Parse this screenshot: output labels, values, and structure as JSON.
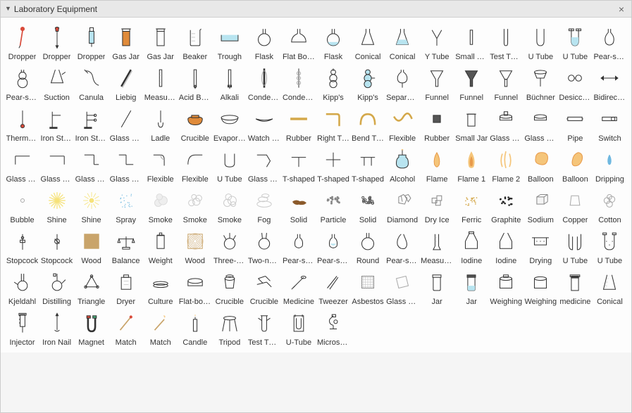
{
  "panel": {
    "title": "Laboratory Equipment"
  },
  "colors": {
    "stroke": "#333333",
    "glass_fill": "#b8e4f0",
    "liquid_red": "#d94a3a",
    "liquid_orange": "#e08b3a",
    "liquid_brown": "#8b5a2b",
    "flame": "#f5c57a",
    "flame_inner": "#e89a4a",
    "gold": "#d4a84a",
    "shine": "#f6e27a",
    "smoke": "#cccccc",
    "wood": "#c9a46a",
    "blue_drop": "#6fb8e0"
  },
  "items": [
    {
      "label": "Dropper",
      "icon": "dropper-red"
    },
    {
      "label": "Dropper",
      "icon": "dropper-bulb"
    },
    {
      "label": "Dropper",
      "icon": "dropper-blue"
    },
    {
      "label": "Gas Jar",
      "icon": "gasjar-fill"
    },
    {
      "label": "Gas Jar",
      "icon": "gasjar"
    },
    {
      "label": "Beaker",
      "icon": "beaker"
    },
    {
      "label": "Trough",
      "icon": "trough"
    },
    {
      "label": "Flask",
      "icon": "flask-round"
    },
    {
      "label": "Flat Bottom",
      "icon": "flask-flat"
    },
    {
      "label": "Flask",
      "icon": "flask-fill"
    },
    {
      "label": "Conical",
      "icon": "conical"
    },
    {
      "label": "Conical",
      "icon": "conical-fill"
    },
    {
      "label": "Y Tube",
      "icon": "ytube"
    },
    {
      "label": "Small Tube",
      "icon": "smalltube"
    },
    {
      "label": "Test Tube",
      "icon": "testtube"
    },
    {
      "label": "U Tube",
      "icon": "utube"
    },
    {
      "label": "U Tube",
      "icon": "utube-fill"
    },
    {
      "label": "Pear-shaped",
      "icon": "pear"
    },
    {
      "label": "Pear-shaped",
      "icon": "pear2"
    },
    {
      "label": "Suction",
      "icon": "suction"
    },
    {
      "label": "Canula",
      "icon": "canula"
    },
    {
      "label": "Liebig",
      "icon": "liebig"
    },
    {
      "label": "Measuring",
      "icon": "measuring"
    },
    {
      "label": "Acid Burette",
      "icon": "acid"
    },
    {
      "label": "Alkali",
      "icon": "alkali"
    },
    {
      "label": "Condenser",
      "icon": "condenser"
    },
    {
      "label": "Condenser",
      "icon": "condenser2"
    },
    {
      "label": "Kipp's",
      "icon": "kipps"
    },
    {
      "label": "Kipp's",
      "icon": "kipps2"
    },
    {
      "label": "Separating",
      "icon": "sep"
    },
    {
      "label": "Funnel",
      "icon": "funnel"
    },
    {
      "label": "Funnel",
      "icon": "funnel-fill"
    },
    {
      "label": "Funnel",
      "icon": "funnel2"
    },
    {
      "label": "Büchner",
      "icon": "buchner"
    },
    {
      "label": "Desiccator",
      "icon": "desic"
    },
    {
      "label": "Bidirectional",
      "icon": "bidir"
    },
    {
      "label": "Thermometer",
      "icon": "thermo"
    },
    {
      "label": "Iron Stand",
      "icon": "ironstand"
    },
    {
      "label": "Iron Stand",
      "icon": "ironstand2"
    },
    {
      "label": "Glass Rod",
      "icon": "glassrod"
    },
    {
      "label": "Ladle",
      "icon": "ladle"
    },
    {
      "label": "Crucible",
      "icon": "crucible"
    },
    {
      "label": "Evaporating",
      "icon": "evap"
    },
    {
      "label": "Watch Glass",
      "icon": "watch"
    },
    {
      "label": "Rubber",
      "icon": "rubber"
    },
    {
      "label": "Right Tube",
      "icon": "right"
    },
    {
      "label": "Bend Tube",
      "icon": "bend"
    },
    {
      "label": "Flexible",
      "icon": "flex"
    },
    {
      "label": "Rubber",
      "icon": "rubber2"
    },
    {
      "label": "Small Jar",
      "icon": "smalljar"
    },
    {
      "label": "Glass Cap",
      "icon": "glasscap"
    },
    {
      "label": "Glass Cap",
      "icon": "glasscap2"
    },
    {
      "label": "Pipe",
      "icon": "pipe"
    },
    {
      "label": "Switch",
      "icon": "switch"
    },
    {
      "label": "Glass Tube",
      "icon": "gtube1"
    },
    {
      "label": "Glass Tube",
      "icon": "gtube2"
    },
    {
      "label": "Glass Tube",
      "icon": "gtube3"
    },
    {
      "label": "Glass Tube",
      "icon": "gtube4"
    },
    {
      "label": "Flexible",
      "icon": "flex2"
    },
    {
      "label": "Flexible",
      "icon": "flex3"
    },
    {
      "label": "U Tube",
      "icon": "utube2"
    },
    {
      "label": "Glass Tube",
      "icon": "gtube5"
    },
    {
      "label": "T-shaped",
      "icon": "tshape"
    },
    {
      "label": "T-shaped",
      "icon": "tshape2"
    },
    {
      "label": "T-shaped",
      "icon": "tshape3"
    },
    {
      "label": "Alcohol",
      "icon": "alcohol"
    },
    {
      "label": "Flame",
      "icon": "flame"
    },
    {
      "label": "Flame 1",
      "icon": "flame1"
    },
    {
      "label": "Flame 2",
      "icon": "flame2"
    },
    {
      "label": "Balloon",
      "icon": "balloon"
    },
    {
      "label": "Balloon",
      "icon": "balloon2"
    },
    {
      "label": "Dripping",
      "icon": "drip"
    },
    {
      "label": "Bubble",
      "icon": "bubble"
    },
    {
      "label": "Shine",
      "icon": "shine"
    },
    {
      "label": "Shine",
      "icon": "shine2"
    },
    {
      "label": "Spray",
      "icon": "spray"
    },
    {
      "label": "Smoke",
      "icon": "smoke"
    },
    {
      "label": "Smoke",
      "icon": "smoke2"
    },
    {
      "label": "Smoke",
      "icon": "smoke3"
    },
    {
      "label": "Fog",
      "icon": "fog"
    },
    {
      "label": "Solid",
      "icon": "solid"
    },
    {
      "label": "Particle",
      "icon": "particle"
    },
    {
      "label": "Solid",
      "icon": "solid2"
    },
    {
      "label": "Diamond",
      "icon": "diamond"
    },
    {
      "label": "Dry Ice",
      "icon": "dryice"
    },
    {
      "label": "Ferric",
      "icon": "ferric"
    },
    {
      "label": "Graphite",
      "icon": "graphite"
    },
    {
      "label": "Sodium",
      "icon": "sodium"
    },
    {
      "label": "Copper",
      "icon": "copper"
    },
    {
      "label": "Cotton",
      "icon": "cotton"
    },
    {
      "label": "Stopcock",
      "icon": "stopcock"
    },
    {
      "label": "Stopcock",
      "icon": "stopcock2"
    },
    {
      "label": "Wood",
      "icon": "wood"
    },
    {
      "label": "Balance",
      "icon": "balance"
    },
    {
      "label": "Weight",
      "icon": "weight"
    },
    {
      "label": "Wood",
      "icon": "wood2"
    },
    {
      "label": "Three-neck",
      "icon": "three"
    },
    {
      "label": "Two-neck",
      "icon": "two"
    },
    {
      "label": "Pear-shaped",
      "icon": "pear3"
    },
    {
      "label": "Pear-shaped",
      "icon": "pear4"
    },
    {
      "label": "Round",
      "icon": "round"
    },
    {
      "label": "Pear-shaped",
      "icon": "pear5"
    },
    {
      "label": "Measuring",
      "icon": "meas2"
    },
    {
      "label": "Iodine",
      "icon": "iodine"
    },
    {
      "label": "Iodine",
      "icon": "iodine2"
    },
    {
      "label": "Drying",
      "icon": "drying"
    },
    {
      "label": "U Tube",
      "icon": "utube3"
    },
    {
      "label": "U Tube",
      "icon": "utube4"
    },
    {
      "label": "Kjeldahl",
      "icon": "kjel"
    },
    {
      "label": "Distilling",
      "icon": "distill"
    },
    {
      "label": "Triangle",
      "icon": "triangle"
    },
    {
      "label": "Dryer",
      "icon": "dryer"
    },
    {
      "label": "Culture",
      "icon": "culture"
    },
    {
      "label": "Flat-bottom",
      "icon": "flatb"
    },
    {
      "label": "Crucible",
      "icon": "cruc2"
    },
    {
      "label": "Crucible",
      "icon": "cruc3"
    },
    {
      "label": "Medicine",
      "icon": "medi"
    },
    {
      "label": "Tweezer",
      "icon": "tweezer"
    },
    {
      "label": "Asbestos",
      "icon": "asbestos"
    },
    {
      "label": "Glass Sheet",
      "icon": "glasssheet"
    },
    {
      "label": "Jar",
      "icon": "jar"
    },
    {
      "label": "Jar",
      "icon": "jar2"
    },
    {
      "label": "Weighing",
      "icon": "weigh"
    },
    {
      "label": "Weighing",
      "icon": "weigh2"
    },
    {
      "label": "medicine",
      "icon": "medi2"
    },
    {
      "label": "Conical",
      "icon": "conical2"
    },
    {
      "label": "Injector",
      "icon": "injector"
    },
    {
      "label": "Iron Nail",
      "icon": "iron"
    },
    {
      "label": "Magnet",
      "icon": "magnet"
    },
    {
      "label": "Match",
      "icon": "match"
    },
    {
      "label": "Match",
      "icon": "match2"
    },
    {
      "label": "Candle",
      "icon": "candle"
    },
    {
      "label": "Tripod",
      "icon": "tripod"
    },
    {
      "label": "Test Tube",
      "icon": "testtube2"
    },
    {
      "label": "U-Tube",
      "icon": "utube5"
    },
    {
      "label": "Microscope",
      "icon": "micro"
    }
  ]
}
